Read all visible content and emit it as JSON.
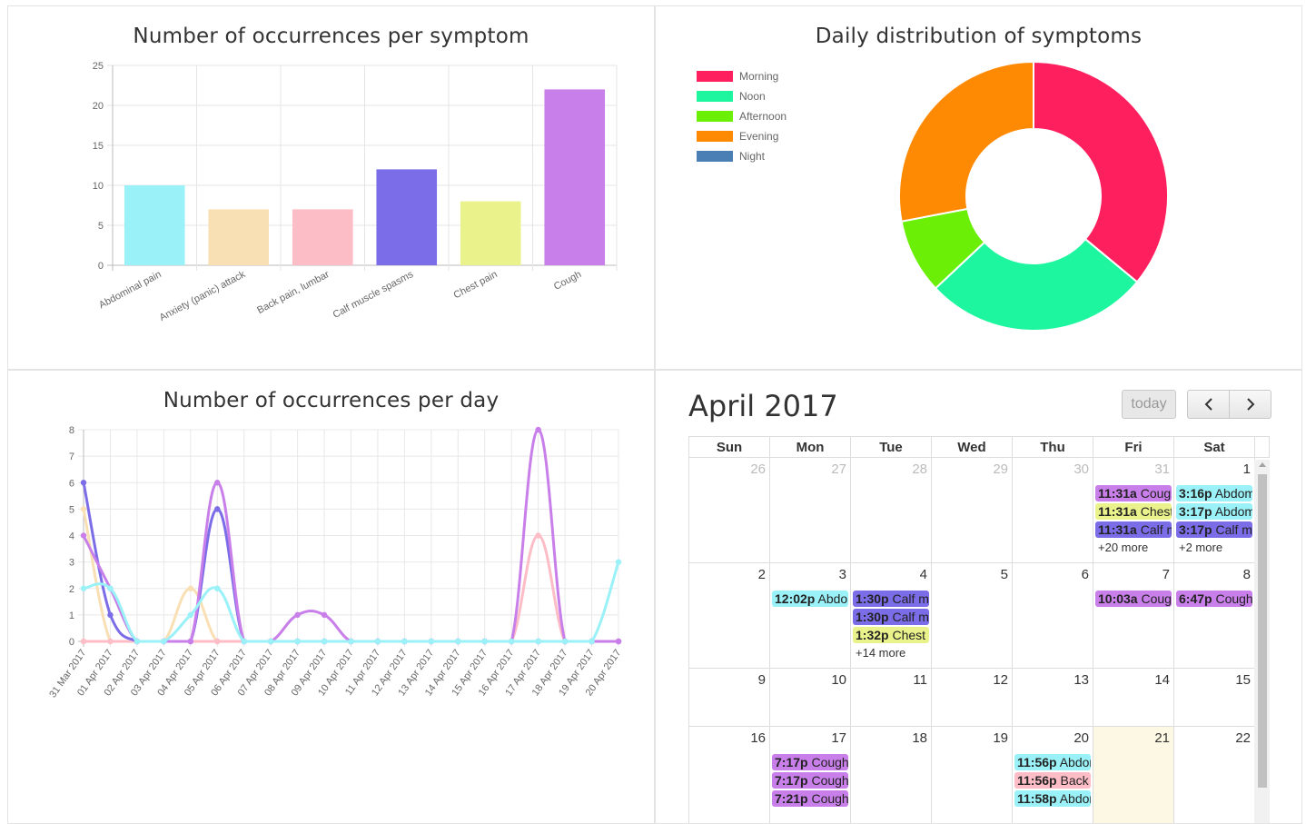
{
  "bar_chart": {
    "title": "Number of occurrences per symptom",
    "chart_data": {
      "type": "bar",
      "title": "Number of occurrences per symptom",
      "categories": [
        "Abdominal pain",
        "Anxiety (panic) attack",
        "Back pain, lumbar",
        "Calf muscle spasms",
        "Chest pain",
        "Cough"
      ],
      "values": [
        10,
        7,
        7,
        12,
        8,
        22
      ],
      "colors": [
        "#9af1f7",
        "#f9dfb4",
        "#fdbdc6",
        "#7b6ce7",
        "#eaf38b",
        "#c97fe9"
      ],
      "ylim": [
        0,
        25
      ],
      "yticks": [
        0,
        5,
        10,
        15,
        20,
        25
      ],
      "grid": true
    }
  },
  "donut_chart": {
    "title": "Daily distribution of symptoms",
    "chart_data": {
      "type": "pie",
      "title": "Daily distribution of symptoms",
      "labels": [
        "Morning",
        "Noon",
        "Afternoon",
        "Evening",
        "Night"
      ],
      "values": [
        36,
        27,
        9,
        28,
        0
      ],
      "colors": [
        "#fe1f5f",
        "#1df59f",
        "#6bef07",
        "#fe8a04",
        "#4a7fb5"
      ],
      "legend": "top-left"
    }
  },
  "line_chart": {
    "title": "Number of occurrences per day",
    "chart_data": {
      "type": "line",
      "title": "Number of occurrences per day",
      "x": [
        "31 Mar 2017",
        "01 Apr 2017",
        "02 Apr 2017",
        "03 Apr 2017",
        "04 Apr 2017",
        "05 Apr 2017",
        "06 Apr 2017",
        "07 Apr 2017",
        "08 Apr 2017",
        "09 Apr 2017",
        "10 Apr 2017",
        "11 Apr 2017",
        "12 Apr 2017",
        "13 Apr 2017",
        "14 Apr 2017",
        "15 Apr 2017",
        "16 Apr 2017",
        "17 Apr 2017",
        "18 Apr 2017",
        "19 Apr 2017",
        "20 Apr 2017"
      ],
      "ylim": [
        0,
        8
      ],
      "yticks": [
        0,
        1,
        2,
        3,
        4,
        5,
        6,
        7,
        8
      ],
      "grid": true,
      "series": [
        {
          "color": "#f9dfb4",
          "values": [
            5,
            0,
            0,
            0,
            2,
            0,
            0,
            0,
            0,
            0,
            0,
            0,
            0,
            0,
            0,
            0,
            0,
            0,
            0,
            0,
            0
          ]
        },
        {
          "color": "#fdbdc6",
          "values": [
            0,
            0,
            0,
            0,
            0,
            0,
            0,
            0,
            0,
            0,
            0,
            0,
            0,
            0,
            0,
            0,
            0,
            4,
            0,
            0,
            0
          ]
        },
        {
          "color": "#7b6ce7",
          "values": [
            6,
            1,
            0,
            0,
            0,
            5,
            0,
            0,
            0,
            0,
            0,
            0,
            0,
            0,
            0,
            0,
            0,
            0,
            0,
            0,
            0
          ]
        },
        {
          "color": "#c97fe9",
          "values": [
            4,
            2,
            0,
            0,
            0,
            6,
            0,
            0,
            1,
            1,
            0,
            0,
            0,
            0,
            0,
            0,
            0,
            8,
            0,
            0,
            0
          ]
        },
        {
          "color": "#9af1f7",
          "values": [
            2,
            2,
            0,
            0,
            1,
            2,
            0,
            0,
            0,
            0,
            0,
            0,
            0,
            0,
            0,
            0,
            0,
            0,
            0,
            0,
            3
          ]
        }
      ]
    }
  },
  "calendar": {
    "title": "April 2017",
    "today_label": "today",
    "prev_icon": "chevron-left-icon",
    "next_icon": "chevron-right-icon",
    "weekdays": [
      "Sun",
      "Mon",
      "Tue",
      "Wed",
      "Thu",
      "Fri",
      "Sat"
    ],
    "weeks": [
      {
        "days": [
          {
            "num": "26",
            "other": true,
            "events": []
          },
          {
            "num": "27",
            "other": true,
            "events": []
          },
          {
            "num": "28",
            "other": true,
            "events": []
          },
          {
            "num": "29",
            "other": true,
            "events": []
          },
          {
            "num": "30",
            "other": true,
            "events": []
          },
          {
            "num": "31",
            "other": true,
            "events": [
              {
                "time": "11:31a",
                "text": "Cough",
                "color": "#c97fe9"
              },
              {
                "time": "11:31a",
                "text": "Chest pain",
                "color": "#eaf38b"
              },
              {
                "time": "11:31a",
                "text": "Calf muscle spasms",
                "color": "#7b6ce7"
              }
            ],
            "more": "+20 more"
          },
          {
            "num": "1",
            "other": false,
            "events": [
              {
                "time": "3:16p",
                "text": "Abdominal pain",
                "color": "#9af1f7"
              },
              {
                "time": "3:17p",
                "text": "Abdominal pain",
                "color": "#9af1f7"
              },
              {
                "time": "3:17p",
                "text": "Calf muscle spasms",
                "color": "#7b6ce7"
              }
            ],
            "more": "+2 more"
          }
        ]
      },
      {
        "days": [
          {
            "num": "2",
            "events": []
          },
          {
            "num": "3",
            "events": [
              {
                "time": "12:02p",
                "text": "Abdominal pain",
                "color": "#9af1f7"
              }
            ]
          },
          {
            "num": "4",
            "events": [
              {
                "time": "1:30p",
                "text": "Calf muscle spasms",
                "color": "#7b6ce7"
              },
              {
                "time": "1:30p",
                "text": "Calf muscle spasms",
                "color": "#7b6ce7"
              },
              {
                "time": "1:32p",
                "text": "Chest pain",
                "color": "#eaf38b"
              }
            ],
            "more": "+14 more"
          },
          {
            "num": "5",
            "events": []
          },
          {
            "num": "6",
            "events": []
          },
          {
            "num": "7",
            "events": [
              {
                "time": "10:03a",
                "text": "Cough",
                "color": "#c97fe9"
              }
            ]
          },
          {
            "num": "8",
            "events": [
              {
                "time": "6:47p",
                "text": "Cough",
                "color": "#c97fe9"
              }
            ]
          }
        ]
      },
      {
        "days": [
          {
            "num": "9",
            "events": []
          },
          {
            "num": "10",
            "events": []
          },
          {
            "num": "11",
            "events": []
          },
          {
            "num": "12",
            "events": []
          },
          {
            "num": "13",
            "events": []
          },
          {
            "num": "14",
            "events": []
          },
          {
            "num": "15",
            "events": []
          }
        ]
      },
      {
        "days": [
          {
            "num": "16",
            "events": []
          },
          {
            "num": "17",
            "events": [
              {
                "time": "7:17p",
                "text": "Cough",
                "color": "#c97fe9"
              },
              {
                "time": "7:17p",
                "text": "Cough",
                "color": "#c97fe9"
              },
              {
                "time": "7:21p",
                "text": "Cough",
                "color": "#c97fe9"
              }
            ]
          },
          {
            "num": "18",
            "events": []
          },
          {
            "num": "19",
            "events": []
          },
          {
            "num": "20",
            "events": [
              {
                "time": "11:56p",
                "text": "Abdominal pain",
                "color": "#9af1f7"
              },
              {
                "time": "11:56p",
                "text": "Back pain, lumbar",
                "color": "#fdbdc6"
              },
              {
                "time": "11:58p",
                "text": "Abdominal pain",
                "color": "#9af1f7"
              }
            ]
          },
          {
            "num": "21",
            "today": true,
            "events": []
          },
          {
            "num": "22",
            "events": []
          }
        ]
      }
    ]
  }
}
